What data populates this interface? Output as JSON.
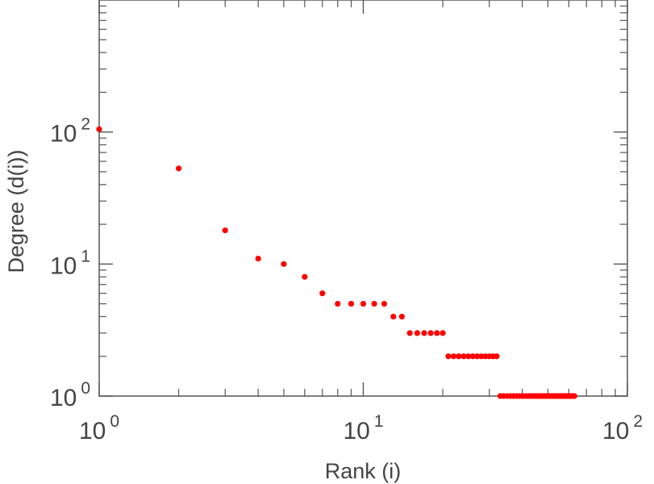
{
  "chart_data": {
    "type": "scatter",
    "xlabel": "Rank (i)",
    "ylabel": "Degree (d(i))",
    "xscale": "log",
    "yscale": "log",
    "xlim": [
      1,
      100
    ],
    "ylim": [
      1,
      1000
    ],
    "grid": false,
    "marker_color": "#ff0000",
    "x_ticks": [
      {
        "base": "10",
        "exp": "0",
        "value": 1
      },
      {
        "base": "10",
        "exp": "1",
        "value": 10
      },
      {
        "base": "10",
        "exp": "2",
        "value": 100
      }
    ],
    "y_ticks": [
      {
        "base": "10",
        "exp": "0",
        "value": 1
      },
      {
        "base": "10",
        "exp": "1",
        "value": 10
      },
      {
        "base": "10",
        "exp": "2",
        "value": 100
      }
    ],
    "series": [
      {
        "x": [
          1,
          2,
          3,
          4,
          5,
          6,
          7,
          8,
          9,
          10,
          11,
          12,
          13,
          14,
          15,
          16,
          17,
          18,
          19,
          20,
          21,
          22,
          23,
          24,
          25,
          26,
          27,
          28,
          29,
          30,
          31,
          32,
          33,
          34,
          35,
          36,
          37,
          38,
          39,
          40,
          41,
          42,
          43,
          44,
          45,
          46,
          47,
          48,
          49,
          50,
          51,
          52,
          53,
          54,
          55,
          56,
          57,
          58,
          59,
          60,
          61,
          62,
          63
        ],
        "y": [
          105,
          53,
          18,
          11,
          10,
          8,
          6,
          5,
          5,
          5,
          5,
          5,
          4,
          4,
          3,
          3,
          3,
          3,
          3,
          3,
          2,
          2,
          2,
          2,
          2,
          2,
          2,
          2,
          2,
          2,
          2,
          2,
          1,
          1,
          1,
          1,
          1,
          1,
          1,
          1,
          1,
          1,
          1,
          1,
          1,
          1,
          1,
          1,
          1,
          1,
          1,
          1,
          1,
          1,
          1,
          1,
          1,
          1,
          1,
          1,
          1,
          1,
          1
        ]
      }
    ]
  }
}
